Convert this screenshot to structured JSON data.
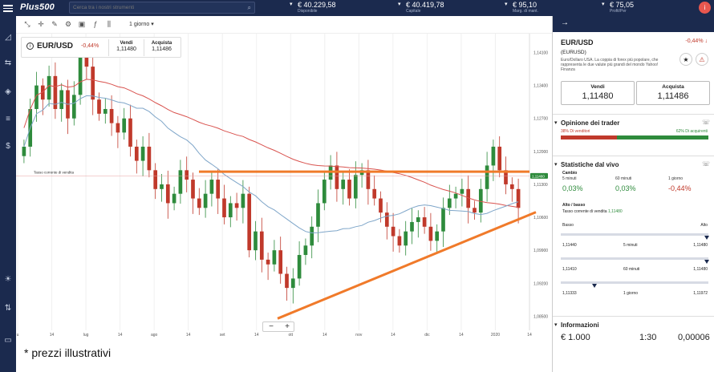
{
  "topbar": {
    "logo": "Plus500",
    "search_placeholder": "Cerca tra i nostri strumenti",
    "stats": [
      {
        "value": "€ 40.229,58",
        "label": "Disponibile"
      },
      {
        "value": "€ 40.419,78",
        "label": "Capitale"
      },
      {
        "value": "€ 95,10",
        "label": "Marg. di mant."
      },
      {
        "value": "€ 75,05",
        "label": "Profit/Per"
      }
    ],
    "avatar": "i"
  },
  "toolbar": {
    "timeframe": "1 giorno ▾"
  },
  "instrument_box": {
    "symbol": "EUR/USD",
    "change": "-0,44%",
    "sell_label": "Vendi",
    "sell_value": "1,11480",
    "buy_label": "Acquista",
    "buy_value": "1,11486"
  },
  "chart_annotation": "Tasso corrente di vendita",
  "price_tag": "1,11480",
  "chart_data": {
    "type": "candlestick",
    "x_tick_labels": [
      "u",
      "14",
      "lug",
      "14",
      "ago",
      "14",
      "set",
      "14",
      "ott",
      "14",
      "nov",
      "14",
      "dic",
      "14",
      "2020",
      "14"
    ],
    "y_tick_labels": [
      "1,14100",
      "1,13400",
      "1,12700",
      "1,12000",
      "1,11300",
      "1,10600",
      "1,09900",
      "1,09200",
      "1,08500"
    ],
    "ylim": [
      1.082,
      1.145
    ],
    "current_sell": 1.1148,
    "resistance_level": 1.1157,
    "support_trendline": {
      "from": 1.0845,
      "to": 1.1071
    },
    "overlays": [
      "red moving average",
      "blue moving average"
    ],
    "candles_approx": [
      1.121,
      1.129,
      1.134,
      1.131,
      1.136,
      1.129,
      1.133,
      1.127,
      1.132,
      1.14,
      1.138,
      1.131,
      1.128,
      1.129,
      1.126,
      1.124,
      1.127,
      1.121,
      1.118,
      1.121,
      1.116,
      1.112,
      1.113,
      1.109,
      1.111,
      1.116,
      1.114,
      1.11,
      1.108,
      1.111,
      1.114,
      1.11,
      1.106,
      1.109,
      1.108,
      1.111,
      1.099,
      1.103,
      1.097,
      1.096,
      1.099,
      1.094,
      1.091,
      1.093,
      1.098,
      1.1,
      1.104,
      1.109,
      1.114,
      1.117,
      1.112,
      1.114,
      1.11,
      1.115,
      1.116,
      1.112,
      1.11,
      1.107,
      1.104,
      1.102,
      1.1,
      1.103,
      1.105,
      1.106,
      1.104,
      1.101,
      1.103,
      1.108,
      1.11,
      1.111,
      1.112,
      1.108,
      1.107,
      1.112,
      1.117,
      1.121,
      1.116,
      1.113,
      1.112,
      1.108
    ]
  },
  "panel": {
    "header_icon": "→",
    "symbol": "EUR/USD",
    "change": "-0,44% ↓",
    "ticker": "(EURUSD)",
    "description": "Euro/Dollaro USA. La coppia di forex più popolare, che rappresenta le due valute più grandi del mondo Yahoo! Finanza",
    "sell_label": "Vendi",
    "sell_value": "1,11480",
    "buy_label": "Acquista",
    "buy_value": "1,11486",
    "opinion": {
      "title": "Opinione dei trader",
      "sell_text": "38% Di venditori",
      "buy_text": "62% Di acquirenti",
      "sell_pct": 38
    },
    "stats": {
      "title": "Statistiche dal vivo",
      "change_label": "Cambio",
      "periods": [
        {
          "label": "5 minuti",
          "value": "0,03%"
        },
        {
          "label": "60 minuti",
          "value": "0,03%"
        },
        {
          "label": "1 giorno",
          "value": "-0,44%"
        }
      ],
      "highlow_label": "Alto / basso",
      "current_sell_label": "Tasso corrente di vendita",
      "current_sell_value": "1,11480",
      "low_label": "Basso",
      "high_label": "Alto",
      "rows": [
        {
          "low": "1,11440",
          "period": "5 minuti",
          "high": "1,11480",
          "pos": 0.99
        },
        {
          "low": "1,11410",
          "period": "60 minuti",
          "high": "1,11480",
          "pos": 0.99
        },
        {
          "low": "1,11333",
          "period": "1 giorno",
          "high": "1,11972",
          "pos": 0.23
        }
      ]
    },
    "info": {
      "title": "Informazioni",
      "v1": "€ 1.000",
      "v2": "1:30",
      "v3": "0,00006"
    }
  },
  "footnote": "* prezzi illustrativi",
  "colors": {
    "navy": "#1b2a4e",
    "up": "#2e8b3c",
    "down": "#c0392b",
    "trendline": "#f07a2a",
    "ma_red": "#d9534f",
    "ma_blue": "#7fa6c9"
  }
}
